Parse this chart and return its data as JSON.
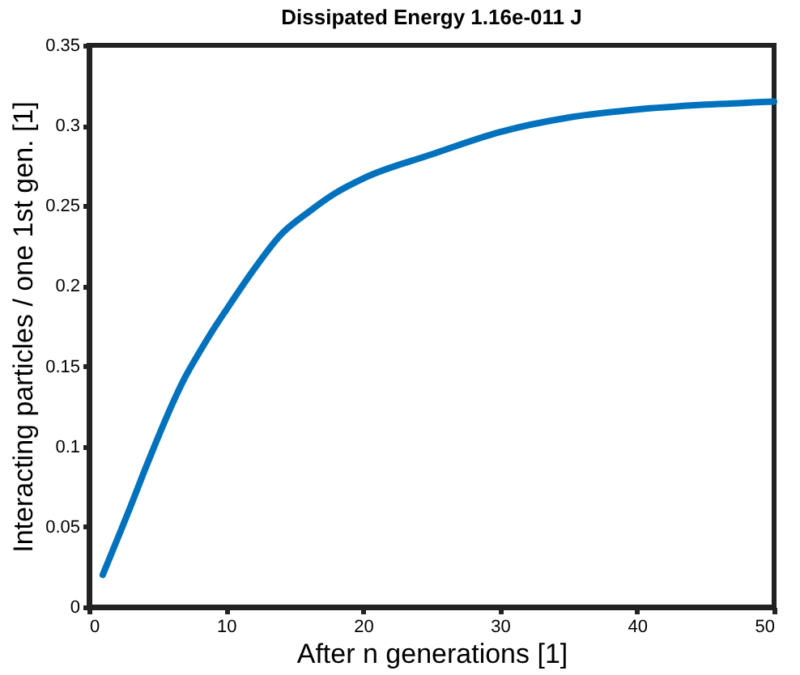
{
  "chart_data": {
    "type": "line",
    "title": "Dissipated Energy 1.16e-011 J",
    "xlabel": "After n generations [1]",
    "ylabel": "Interacting particles / one 1st gen. [1]",
    "x": [
      1,
      2,
      3,
      4,
      5,
      6,
      7,
      8,
      9,
      10,
      12,
      14,
      16,
      18,
      20,
      25,
      30,
      35,
      40,
      45,
      50
    ],
    "series": [
      {
        "color": "#0072bd",
        "values": [
          0.02,
          0.041,
          0.062,
          0.084,
          0.105,
          0.125,
          0.143,
          0.158,
          0.172,
          0.185,
          0.21,
          0.232,
          0.246,
          0.258,
          0.267,
          0.282,
          0.296,
          0.305,
          0.31,
          0.313,
          0.315
        ]
      }
    ],
    "xlim": [
      0,
      50
    ],
    "xticks": [
      0,
      10,
      20,
      30,
      40,
      50
    ],
    "ylim": [
      0,
      0.35
    ],
    "yticks": [
      0,
      0.05,
      0.1,
      0.15,
      0.2,
      0.25,
      0.3,
      0.35
    ],
    "grid": false,
    "marker": "none",
    "line_style": "solid"
  }
}
